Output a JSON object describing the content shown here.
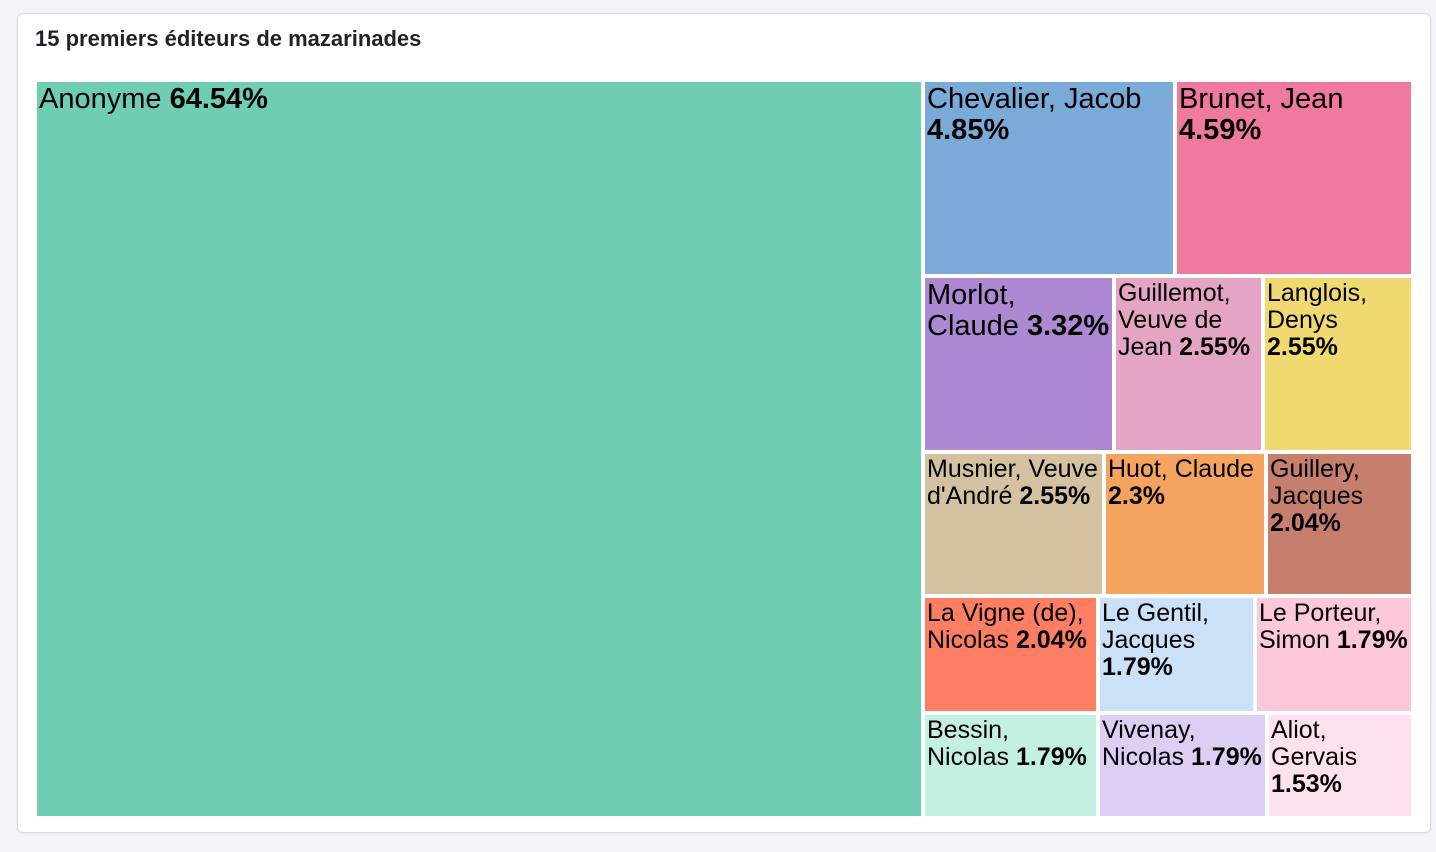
{
  "title": "15 premiers éditeurs de mazarinades",
  "chart_data": {
    "type": "treemap",
    "title": "15 premiers éditeurs de mazarinades",
    "unit": "%",
    "items": [
      {
        "name": "Anonyme",
        "value": 64.54,
        "label": "64.54%",
        "color": "#6fcdb3"
      },
      {
        "name": "Chevalier, Jacob",
        "value": 4.85,
        "label": "4.85%",
        "color": "#7aaad8"
      },
      {
        "name": "Brunet, Jean",
        "value": 4.59,
        "label": "4.59%",
        "color": "#ef7a9e"
      },
      {
        "name": "Morlot, Claude",
        "value": 3.32,
        "label": "3.32%",
        "color": "#ad89d4"
      },
      {
        "name": "Guillemot, Veuve de Jean",
        "value": 2.55,
        "label": "2.55%",
        "color": "#e4a5c5"
      },
      {
        "name": "Langlois, Denys",
        "value": 2.55,
        "label": "2.55%",
        "color": "#f1d972"
      },
      {
        "name": "Musnier, Veuve d'André",
        "value": 2.55,
        "label": "2.55%",
        "color": "#d4c19f"
      },
      {
        "name": "Huot, Claude",
        "value": 2.3,
        "label": "2.3%",
        "color": "#f4a45e"
      },
      {
        "name": "Guillery, Jacques",
        "value": 2.04,
        "label": "2.04%",
        "color": "#c67e6d"
      },
      {
        "name": "La Vigne (de), Nicolas",
        "value": 2.04,
        "label": "2.04%",
        "color": "#fe7e63"
      },
      {
        "name": "Le Gentil, Jacques",
        "value": 1.79,
        "label": "1.79%",
        "color": "#cbe1f8"
      },
      {
        "name": "Le Porteur, Simon",
        "value": 1.79,
        "label": "1.79%",
        "color": "#fcc8da"
      },
      {
        "name": "Bessin, Nicolas",
        "value": 1.79,
        "label": "1.79%",
        "color": "#c4f0e2"
      },
      {
        "name": "Vivenay, Nicolas",
        "value": 1.79,
        "label": "1.79%",
        "color": "#ddcef4"
      },
      {
        "name": "Aliot, Gervais",
        "value": 1.53,
        "label": "1.53%",
        "color": "#fde1ee"
      }
    ]
  }
}
